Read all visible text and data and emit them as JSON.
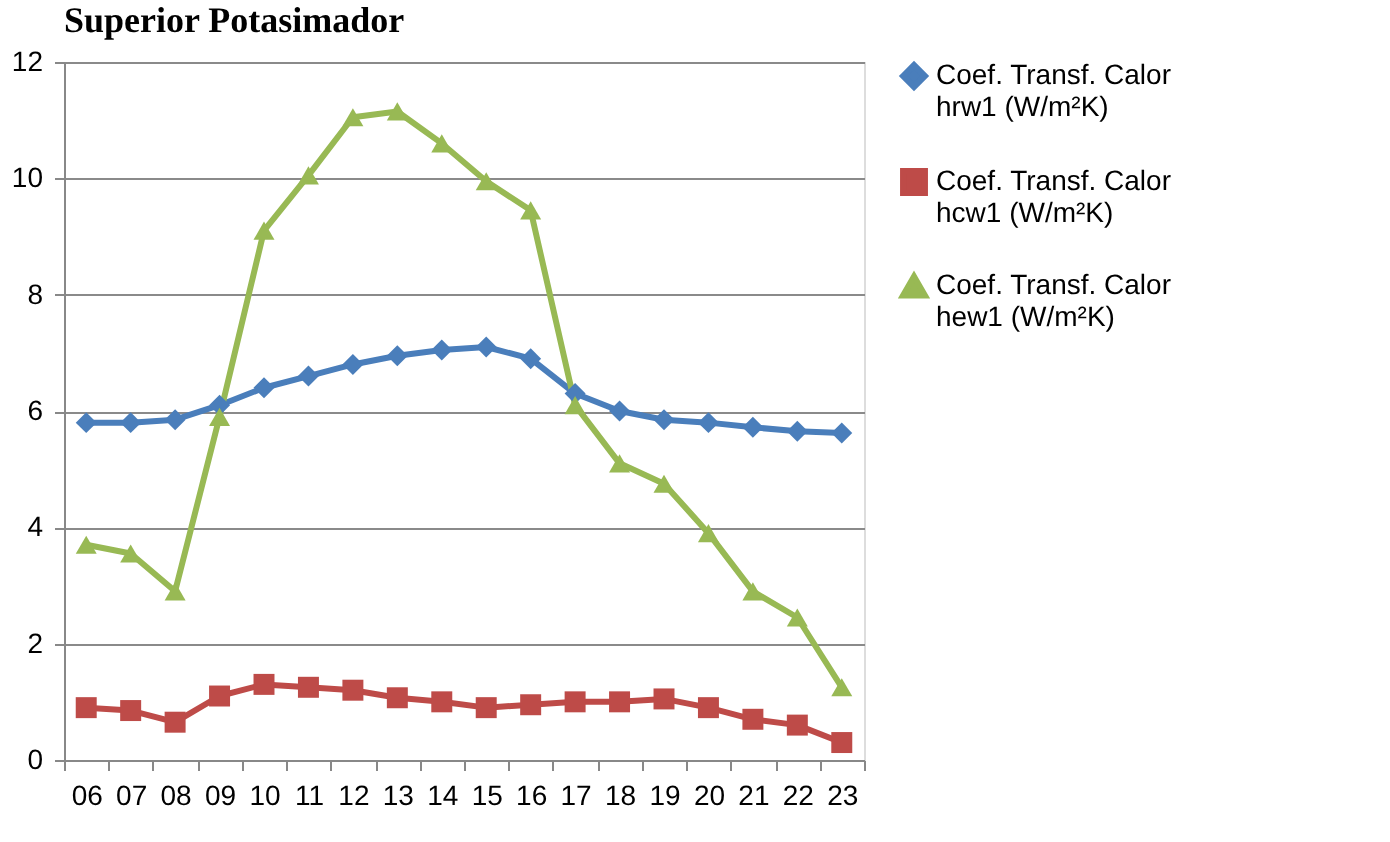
{
  "chart_data": {
    "type": "line",
    "title": "Superior Potasimador",
    "categories": [
      "06",
      "07",
      "08",
      "09",
      "10",
      "11",
      "12",
      "13",
      "14",
      "15",
      "16",
      "17",
      "18",
      "19",
      "20",
      "21",
      "22",
      "23"
    ],
    "series": [
      {
        "name": "Coef. Transf. Calor hrw1 (W/m²K)",
        "color": "#4a7ebb",
        "marker": "diamond",
        "values": [
          5.8,
          5.8,
          5.85,
          6.1,
          6.4,
          6.6,
          6.8,
          6.95,
          7.05,
          7.1,
          6.9,
          6.3,
          6.0,
          5.85,
          5.8,
          5.72,
          5.65,
          5.62
        ]
      },
      {
        "name": "Coef. Transf. Calor hcw1 (W/m²K)",
        "color": "#be4b48",
        "marker": "square",
        "values": [
          0.9,
          0.85,
          0.65,
          1.1,
          1.3,
          1.25,
          1.2,
          1.07,
          1.0,
          0.9,
          0.95,
          1.0,
          1.0,
          1.05,
          0.9,
          0.7,
          0.6,
          0.3
        ]
      },
      {
        "name": "Coef. Transf. Calor hew1 (W/m²K)",
        "color": "#98b954",
        "marker": "triangle",
        "values": [
          3.7,
          3.55,
          2.9,
          5.9,
          9.1,
          10.05,
          11.05,
          11.15,
          10.6,
          9.95,
          9.45,
          6.1,
          5.1,
          4.75,
          3.9,
          2.9,
          2.45,
          1.25
        ]
      }
    ],
    "ylim": [
      0,
      12
    ],
    "yticks": [
      0,
      2,
      4,
      6,
      8,
      10,
      12
    ],
    "grid": "y",
    "legend": "right",
    "line_style": "solid"
  }
}
